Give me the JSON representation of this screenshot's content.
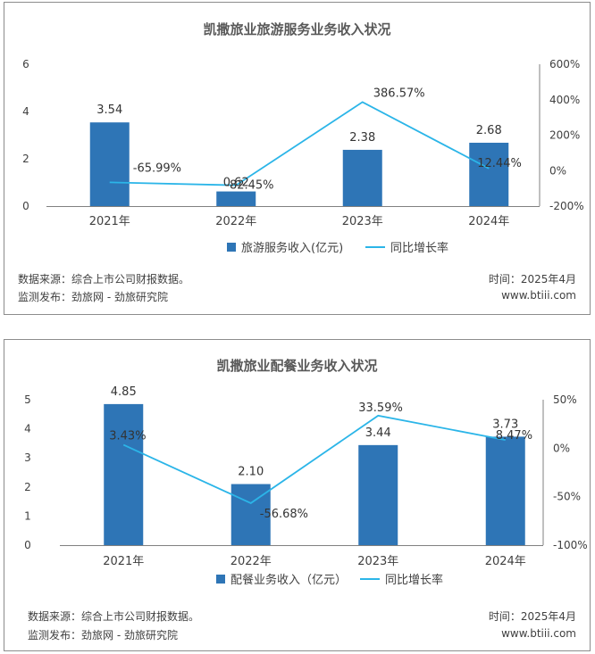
{
  "colors": {
    "bar": "#2e75b6",
    "line": "#2bb5e8",
    "axis": "#808080",
    "text": "#404040",
    "label": "#333333"
  },
  "chart_data": [
    {
      "type": "bar",
      "title": "凯撒旅业旅游服务业务收入状况",
      "categories": [
        "2021年",
        "2022年",
        "2023年",
        "2024年"
      ],
      "series": [
        {
          "name": "旅游服务收入(亿元)",
          "type": "bar",
          "axis": "left",
          "values": [
            3.54,
            0.62,
            2.38,
            2.68
          ],
          "labels": [
            "3.54",
            "0.62",
            "2.38",
            "2.68"
          ]
        },
        {
          "name": "同比增长率",
          "type": "line",
          "axis": "right",
          "values": [
            -65.99,
            -82.45,
            386.57,
            12.44
          ],
          "labels": [
            "-65.99%",
            "-82.45%",
            "386.57%",
            "12.44%"
          ]
        }
      ],
      "y_left": {
        "min": 0,
        "max": 6,
        "ticks": [
          "0",
          "2",
          "4",
          "6"
        ]
      },
      "y_right": {
        "min": -200,
        "max": 600,
        "ticks": [
          "-200%",
          "0%",
          "200%",
          "400%",
          "600%"
        ]
      },
      "legend": "bottom",
      "grid": false
    },
    {
      "type": "bar",
      "title": "凯撒旅业配餐业务收入状况",
      "categories": [
        "2021年",
        "2022年",
        "2023年",
        "2024年"
      ],
      "series": [
        {
          "name": "配餐业务收入（亿元）",
          "type": "bar",
          "axis": "left",
          "values": [
            4.85,
            2.1,
            3.44,
            3.73
          ],
          "labels": [
            "4.85",
            "2.10",
            "3.44",
            "3.73"
          ]
        },
        {
          "name": "同比增长率",
          "type": "line",
          "axis": "right",
          "values": [
            3.43,
            -56.68,
            33.59,
            8.47
          ],
          "labels": [
            "3.43%",
            "-56.68%",
            "33.59%",
            "8.47%"
          ]
        }
      ],
      "y_left": {
        "min": 0,
        "max": 5,
        "ticks": [
          "0",
          "1",
          "2",
          "3",
          "4",
          "5"
        ]
      },
      "y_right": {
        "min": -100,
        "max": 50,
        "ticks": [
          "-100%",
          "-50%",
          "0%",
          "50%"
        ]
      },
      "legend": "bottom",
      "grid": false
    }
  ],
  "footers": [
    {
      "source": "数据来源：综合上市公司财报数据。",
      "publisher": "监测发布：劲旅网 - 劲旅研究院",
      "time": "时间：2025年4月",
      "site": "www.btiii.com"
    },
    {
      "source": "数据来源：综合上市公司财报数据。",
      "publisher": "监测发布：劲旅网 - 劲旅研究院",
      "time": "时间：2025年4月",
      "site": "www.btiii.com"
    }
  ]
}
